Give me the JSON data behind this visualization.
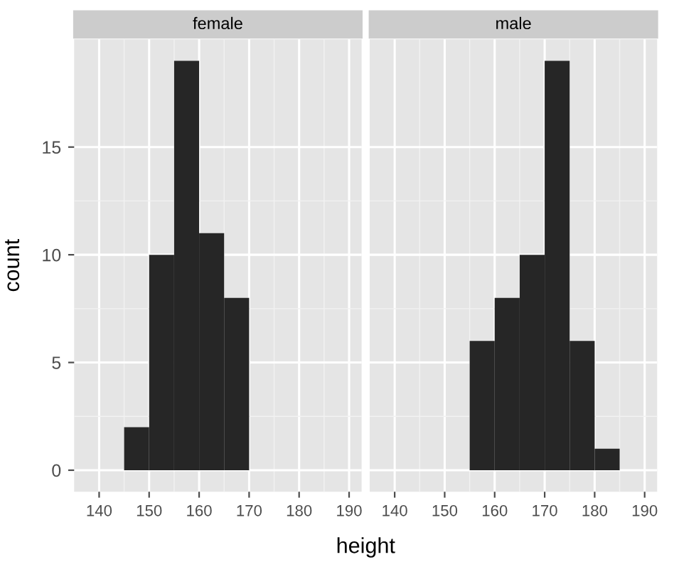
{
  "chart_data": [
    {
      "type": "histogram",
      "title": "female",
      "xlabel": "height",
      "ylabel": "count",
      "bins": [
        145,
        150,
        155,
        160,
        165,
        170
      ],
      "values": [
        2,
        10,
        19,
        11,
        8
      ],
      "color": "#262626",
      "xlim": [
        135,
        192.5
      ],
      "ylim": [
        -1,
        20
      ],
      "xticks": [
        140,
        150,
        160,
        170,
        180,
        190
      ],
      "yticks": [
        0,
        5,
        10,
        15
      ],
      "grid": true
    },
    {
      "type": "histogram",
      "title": "male",
      "bins": [
        155,
        160,
        165,
        170,
        175,
        180,
        185
      ],
      "values": [
        6,
        8,
        10,
        19,
        6,
        1
      ],
      "color": "#262626",
      "xlim": [
        135,
        192.5
      ],
      "ylim": [
        -1,
        20
      ],
      "xticks": [
        140,
        150,
        160,
        170,
        180,
        190
      ],
      "yticks": [
        0,
        5,
        10,
        15
      ],
      "grid": true,
      "tick_labels": "x"
    }
  ]
}
